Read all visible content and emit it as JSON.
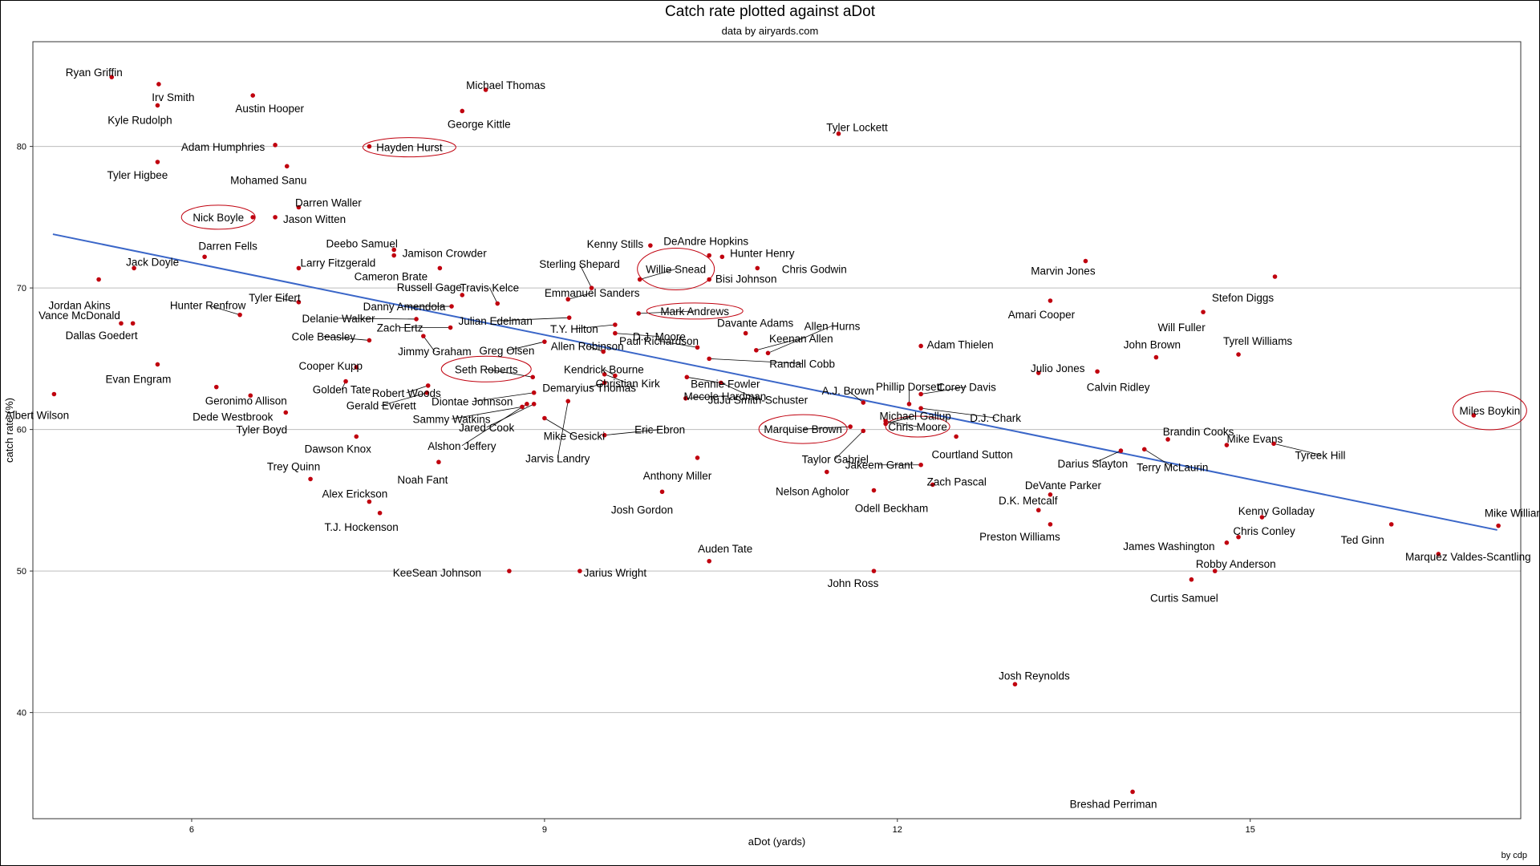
{
  "chart_data": {
    "type": "scatter",
    "title": "Catch rate plotted against aDot",
    "subtitle": "data by airyards.com",
    "xlabel": "aDot (yards)",
    "ylabel": "catch rate (%)",
    "credit": "by cdp",
    "xlim": [
      4.65,
      17.3
    ],
    "ylim": [
      32.5,
      87.4
    ],
    "xticks": [
      6,
      9,
      12,
      15
    ],
    "yticks": [
      40,
      50,
      60,
      70,
      80
    ],
    "grid": "horizontal",
    "colors": {
      "point": "#c0000e",
      "trend": "#3a66c8",
      "grid": "#bdbdbd",
      "ellipse": "#c0000e",
      "leader": "#000000"
    },
    "trend_line": {
      "x": [
        4.82,
        17.1
      ],
      "y": [
        73.8,
        52.9
      ]
    },
    "highlighted": [
      "Hayden Hurst",
      "Nick Boyle",
      "Willie Snead",
      "Mark Andrews",
      "Seth Roberts",
      "Marquise Brown",
      "Chris Moore",
      "Miles Boykin"
    ],
    "points": [
      {
        "name": "Ryan Griffin",
        "x": 5.32,
        "y": 84.9
      },
      {
        "name": "Irv Smith",
        "x": 5.72,
        "y": 84.4
      },
      {
        "name": "Kyle Rudolph",
        "x": 5.71,
        "y": 82.9
      },
      {
        "name": "Austin Hooper",
        "x": 6.52,
        "y": 83.6
      },
      {
        "name": "Michael Thomas",
        "x": 8.5,
        "y": 84.0
      },
      {
        "name": "George Kittle",
        "x": 8.3,
        "y": 82.5
      },
      {
        "name": "Tyler Lockett",
        "x": 11.5,
        "y": 80.9
      },
      {
        "name": "Adam Humphries",
        "x": 6.71,
        "y": 80.1
      },
      {
        "name": "Hayden Hurst",
        "x": 7.51,
        "y": 80.0
      },
      {
        "name": "Tyler Higbee",
        "x": 5.71,
        "y": 78.9
      },
      {
        "name": "Mohamed Sanu",
        "x": 6.81,
        "y": 78.6
      },
      {
        "name": "Darren Waller",
        "x": 6.91,
        "y": 75.7
      },
      {
        "name": "Nick Boyle",
        "x": 6.52,
        "y": 75.0
      },
      {
        "name": "Jason Witten",
        "x": 6.71,
        "y": 75.0
      },
      {
        "name": "Darren Fells",
        "x": 6.11,
        "y": 72.2
      },
      {
        "name": "Deebo Samuel",
        "x": 7.72,
        "y": 72.7
      },
      {
        "name": "Jamison Crowder",
        "x": 7.72,
        "y": 72.3
      },
      {
        "name": "Larry Fitzgerald",
        "x": 6.91,
        "y": 71.4
      },
      {
        "name": "Kenny Stills",
        "x": 9.9,
        "y": 73.0
      },
      {
        "name": "DeAndre Hopkins",
        "x": 10.4,
        "y": 72.3
      },
      {
        "name": "Hunter Henry",
        "x": 10.51,
        "y": 72.2
      },
      {
        "name": "Chris Godwin",
        "x": 10.81,
        "y": 71.4
      },
      {
        "name": "Marvin Jones",
        "x": 13.6,
        "y": 71.9
      },
      {
        "name": "Stefon Diggs",
        "x": 15.21,
        "y": 70.8
      },
      {
        "name": "Jack Doyle",
        "x": 5.51,
        "y": 71.4
      },
      {
        "name": "Jordan Akins",
        "x": 5.21,
        "y": 70.6
      },
      {
        "name": "Cameron Brate",
        "x": 8.11,
        "y": 71.4
      },
      {
        "name": "Sterling Shepard",
        "x": 9.4,
        "y": 70.0
      },
      {
        "name": "Willie Snead",
        "x": 9.81,
        "y": 70.6
      },
      {
        "name": "Bisi Johnson",
        "x": 10.4,
        "y": 70.6
      },
      {
        "name": "Tyler Eifert",
        "x": 6.91,
        "y": 69.0
      },
      {
        "name": "Russell Gage",
        "x": 8.3,
        "y": 69.5
      },
      {
        "name": "Travis Kelce",
        "x": 8.6,
        "y": 68.9
      },
      {
        "name": "Danny Amendola",
        "x": 8.21,
        "y": 68.7
      },
      {
        "name": "Emmanuel Sanders",
        "x": 9.2,
        "y": 69.2
      },
      {
        "name": "Mark Andrews",
        "x": 9.8,
        "y": 68.2
      },
      {
        "name": "Amari Cooper",
        "x": 13.3,
        "y": 69.1
      },
      {
        "name": "Will Fuller",
        "x": 14.6,
        "y": 68.3
      },
      {
        "name": "Hunter Renfrow",
        "x": 6.41,
        "y": 68.1
      },
      {
        "name": "Vance McDonald",
        "x": 5.4,
        "y": 67.5
      },
      {
        "name": "Dallas Goedert",
        "x": 5.5,
        "y": 67.5
      },
      {
        "name": "Delanie Walker",
        "x": 7.91,
        "y": 67.8
      },
      {
        "name": "Julian Edelman",
        "x": 9.21,
        "y": 67.9
      },
      {
        "name": "Zach Ertz",
        "x": 8.2,
        "y": 67.2
      },
      {
        "name": "T.Y. Hilton",
        "x": 9.6,
        "y": 67.4
      },
      {
        "name": "D.J. Moore",
        "x": 9.6,
        "y": 66.8
      },
      {
        "name": "Davante Adams",
        "x": 10.71,
        "y": 66.8
      },
      {
        "name": "Allen Hurns",
        "x": 10.9,
        "y": 65.4
      },
      {
        "name": "Keenan Allen",
        "x": 10.8,
        "y": 65.6
      },
      {
        "name": "Adam Thielen",
        "x": 12.2,
        "y": 65.9
      },
      {
        "name": "Cole Beasley",
        "x": 7.51,
        "y": 66.3
      },
      {
        "name": "Jimmy Graham",
        "x": 7.97,
        "y": 66.6
      },
      {
        "name": "Greg Olsen",
        "x": 9.0,
        "y": 66.2
      },
      {
        "name": "Paul Richardson",
        "x": 10.3,
        "y": 65.8
      },
      {
        "name": "Allen Robinson",
        "x": 9.5,
        "y": 65.5
      },
      {
        "name": "Randall Cobb",
        "x": 10.4,
        "y": 65.0
      },
      {
        "name": "John Brown",
        "x": 14.2,
        "y": 65.1
      },
      {
        "name": "Tyrell Williams",
        "x": 14.9,
        "y": 65.3
      },
      {
        "name": "Evan Engram",
        "x": 5.71,
        "y": 64.6
      },
      {
        "name": "Cooper Kupp",
        "x": 7.4,
        "y": 64.4
      },
      {
        "name": "Kendrick Bourne",
        "x": 9.6,
        "y": 63.8
      },
      {
        "name": "Bennie Fowler",
        "x": 10.21,
        "y": 63.7
      },
      {
        "name": "Julio Jones",
        "x": 13.2,
        "y": 64.0
      },
      {
        "name": "Calvin Ridley",
        "x": 13.7,
        "y": 64.1
      },
      {
        "name": "Seth Roberts",
        "x": 8.9,
        "y": 63.7
      },
      {
        "name": "Christian Kirk",
        "x": 9.51,
        "y": 63.9
      },
      {
        "name": "Geronimo Allison",
        "x": 6.21,
        "y": 63.0
      },
      {
        "name": "Golden Tate",
        "x": 7.31,
        "y": 63.4
      },
      {
        "name": "Robert Woods",
        "x": 8.01,
        "y": 63.1
      },
      {
        "name": "JuJu Smith-Schuster",
        "x": 10.5,
        "y": 63.3
      },
      {
        "name": "Phillip Dorsett",
        "x": 12.1,
        "y": 61.8
      },
      {
        "name": "Albert Wilson",
        "x": 4.83,
        "y": 62.5
      },
      {
        "name": "Dede Westbrook",
        "x": 6.5,
        "y": 62.4
      },
      {
        "name": "Gerald Everett",
        "x": 8.0,
        "y": 62.6
      },
      {
        "name": "Diontae Johnson",
        "x": 8.91,
        "y": 62.6
      },
      {
        "name": "Demaryius Thomas",
        "x": 9.51,
        "y": 63.3
      },
      {
        "name": "Mecole Hardman",
        "x": 10.2,
        "y": 62.2
      },
      {
        "name": "A.J. Brown",
        "x": 11.71,
        "y": 61.9
      },
      {
        "name": "Corey Davis",
        "x": 12.2,
        "y": 62.5
      },
      {
        "name": "Miles Boykin",
        "x": 16.9,
        "y": 61.0
      },
      {
        "name": "Tyler Boyd",
        "x": 6.8,
        "y": 61.2
      },
      {
        "name": "Sammy Watkins",
        "x": 8.81,
        "y": 61.6
      },
      {
        "name": "Jared Cook",
        "x": 8.91,
        "y": 61.8
      },
      {
        "name": "Michael Gallup",
        "x": 11.9,
        "y": 60.4
      },
      {
        "name": "D.J. Chark",
        "x": 12.2,
        "y": 61.5
      },
      {
        "name": "Alshon Jeffery",
        "x": 8.85,
        "y": 61.8
      },
      {
        "name": "Jarvis Landry",
        "x": 9.2,
        "y": 62.0
      },
      {
        "name": "Mike Gesicki",
        "x": 9.0,
        "y": 60.8
      },
      {
        "name": "Eric Ebron",
        "x": 9.51,
        "y": 59.6
      },
      {
        "name": "Marquise Brown",
        "x": 11.6,
        "y": 60.2
      },
      {
        "name": "Chris Moore",
        "x": 11.9,
        "y": 60.6
      },
      {
        "name": "Taylor Gabriel",
        "x": 11.71,
        "y": 59.9
      },
      {
        "name": "Courtland Sutton",
        "x": 12.5,
        "y": 59.5
      },
      {
        "name": "Brandin Cooks",
        "x": 14.3,
        "y": 59.3
      },
      {
        "name": "Mike Evans",
        "x": 14.8,
        "y": 58.9
      },
      {
        "name": "Tyreek Hill",
        "x": 15.2,
        "y": 59.0
      },
      {
        "name": "Terry McLaurin",
        "x": 14.1,
        "y": 58.6
      },
      {
        "name": "Darius Slayton",
        "x": 13.9,
        "y": 58.5
      },
      {
        "name": "Dawson Knox",
        "x": 7.4,
        "y": 59.5
      },
      {
        "name": "Jakeem Grant",
        "x": 12.2,
        "y": 57.5
      },
      {
        "name": "Anthony Miller",
        "x": 10.3,
        "y": 58.0
      },
      {
        "name": "Noah Fant",
        "x": 8.1,
        "y": 57.7
      },
      {
        "name": "Nelson Agholor",
        "x": 11.4,
        "y": 57.0
      },
      {
        "name": "Zach Pascal",
        "x": 12.3,
        "y": 56.1
      },
      {
        "name": "Trey Quinn",
        "x": 7.01,
        "y": 56.5
      },
      {
        "name": "Alex Erickson",
        "x": 7.51,
        "y": 54.9
      },
      {
        "name": "Odell Beckham",
        "x": 11.8,
        "y": 55.7
      },
      {
        "name": "DeVante Parker",
        "x": 13.3,
        "y": 55.4
      },
      {
        "name": "Josh Gordon",
        "x": 10.0,
        "y": 55.6
      },
      {
        "name": "T.J. Hockenson",
        "x": 7.6,
        "y": 54.1
      },
      {
        "name": "D.K. Metcalf",
        "x": 13.2,
        "y": 54.3
      },
      {
        "name": "Kenny Golladay",
        "x": 15.1,
        "y": 53.8
      },
      {
        "name": "Preston Williams",
        "x": 13.3,
        "y": 53.3
      },
      {
        "name": "Chris Conley",
        "x": 14.9,
        "y": 52.4
      },
      {
        "name": "Ted Ginn",
        "x": 16.2,
        "y": 53.3
      },
      {
        "name": "Mike Williams",
        "x": 17.11,
        "y": 53.2
      },
      {
        "name": "James Washington",
        "x": 14.8,
        "y": 52.0
      },
      {
        "name": "Marquez Valdes-Scantling",
        "x": 16.6,
        "y": 51.2
      },
      {
        "name": "Auden Tate",
        "x": 10.4,
        "y": 50.7
      },
      {
        "name": "KeeSean Johnson",
        "x": 8.7,
        "y": 50.0
      },
      {
        "name": "Jarius Wright",
        "x": 9.3,
        "y": 50.0
      },
      {
        "name": "John Ross",
        "x": 11.8,
        "y": 50.0
      },
      {
        "name": "Robby Anderson",
        "x": 14.7,
        "y": 50.0
      },
      {
        "name": "Curtis Samuel",
        "x": 14.5,
        "y": 49.4
      },
      {
        "name": "Josh Reynolds",
        "x": 13.0,
        "y": 42.0
      },
      {
        "name": "Breshad Perriman",
        "x": 14.0,
        "y": 34.4
      }
    ]
  }
}
